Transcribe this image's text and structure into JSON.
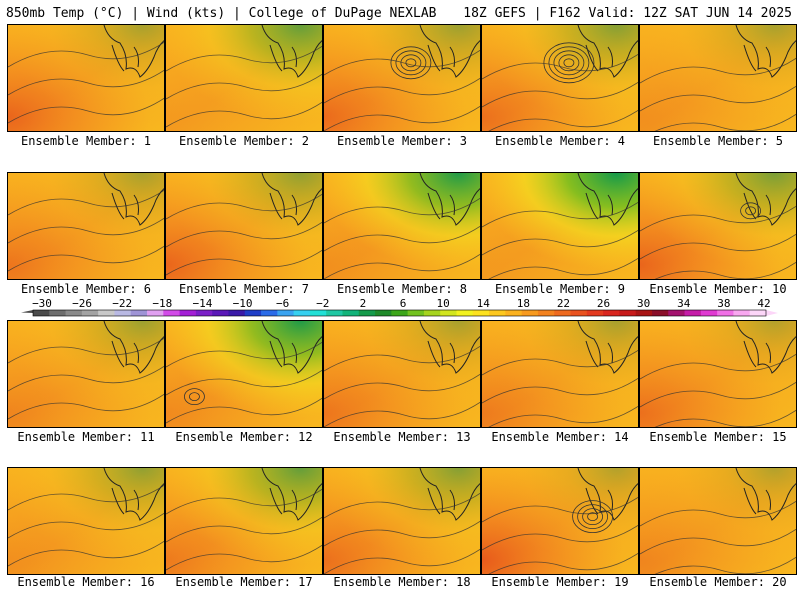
{
  "header": {
    "left": "850mb Temp (°C) | Wind (kts) | College of DuPage NEXLAB",
    "right": "18Z GEFS | F162 Valid: 12Z SAT JUN 14 2025"
  },
  "colorbar": {
    "labels": [
      "−30",
      "−26",
      "−22",
      "−18",
      "−14",
      "−10",
      "−6",
      "−2",
      "2",
      "6",
      "10",
      "14",
      "18",
      "22",
      "26",
      "30",
      "34",
      "38",
      "42"
    ],
    "min": -30,
    "max": 44,
    "colors": [
      "#4b4b4b",
      "#6e6e6e",
      "#8a8a8a",
      "#a3a3a3",
      "#c8c8c8",
      "#b9b9e3",
      "#9f94d6",
      "#e0a0f0",
      "#d24be8",
      "#a31fd6",
      "#7a1fc7",
      "#5a18b8",
      "#3a1aa8",
      "#1f3ec7",
      "#2b6be8",
      "#3aa3f0",
      "#37d0f0",
      "#22e0d6",
      "#1fc7a3",
      "#12b37a",
      "#159a4a",
      "#1f8a2a",
      "#3da61a",
      "#73c21f",
      "#a6d41f",
      "#d2e61f",
      "#f2f21f",
      "#fde21f",
      "#fdc81f",
      "#fbb21f",
      "#f79a1f",
      "#f3821f",
      "#ee6a1f",
      "#e9521f",
      "#e33a1f",
      "#d9261f",
      "#c71a1a",
      "#a81414",
      "#8a0f2a",
      "#a3126e",
      "#c51ca8",
      "#e03ad2",
      "#f070e6",
      "#f8a8f0",
      "#fcd6f8"
    ]
  },
  "chart_data": {
    "type": "heatmap",
    "panel_labels": [
      "Ensemble Member: 1",
      "Ensemble Member: 2",
      "Ensemble Member: 3",
      "Ensemble Member: 4",
      "Ensemble Member: 5",
      "Ensemble Member: 6",
      "Ensemble Member: 7",
      "Ensemble Member: 8",
      "Ensemble Member: 9",
      "Ensemble Member: 10",
      "Ensemble Member: 11",
      "Ensemble Member: 12",
      "Ensemble Member: 13",
      "Ensemble Member: 14",
      "Ensemble Member: 15",
      "Ensemble Member: 16",
      "Ensemble Member: 17",
      "Ensemble Member: 18",
      "Ensemble Member: 19",
      "Ensemble Member: 20"
    ]
  }
}
